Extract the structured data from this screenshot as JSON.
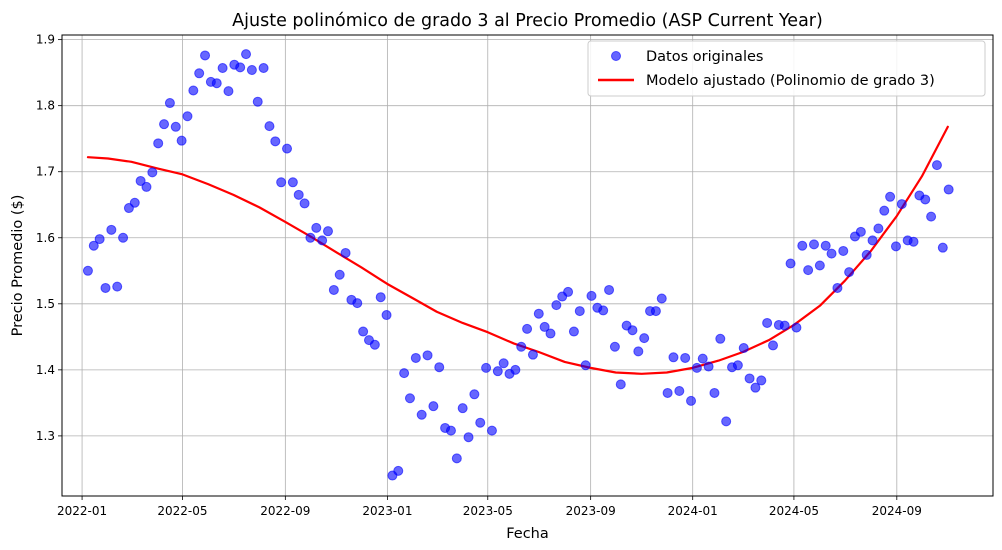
{
  "chart_data": {
    "type": "scatter",
    "title": "Ajuste polinómico de grado 3 al Precio Promedio (ASP Current Year)",
    "xlabel": "Fecha",
    "ylabel": "Precio Promedio ($)",
    "xlim": [
      "2021-12-08",
      "2024-12-25"
    ],
    "ylim": [
      1.209,
      1.907
    ],
    "grid": true,
    "legend_position": "top-right",
    "x_ticks": [
      "2022-01",
      "2022-05",
      "2022-09",
      "2023-01",
      "2023-05",
      "2023-09",
      "2024-01",
      "2024-05",
      "2024-09"
    ],
    "y_ticks": [
      "1.3",
      "1.4",
      "1.5",
      "1.6",
      "1.7",
      "1.8",
      "1.9"
    ],
    "series": [
      {
        "name": "Datos originales",
        "kind": "scatter",
        "color": "#0000ff",
        "points": [
          [
            "2022-01-08",
            1.55
          ],
          [
            "2022-01-15",
            1.588
          ],
          [
            "2022-01-22",
            1.598
          ],
          [
            "2022-01-29",
            1.524
          ],
          [
            "2022-02-05",
            1.612
          ],
          [
            "2022-02-12",
            1.526
          ],
          [
            "2022-02-19",
            1.6
          ],
          [
            "2022-02-26",
            1.645
          ],
          [
            "2022-03-05",
            1.653
          ],
          [
            "2022-03-12",
            1.686
          ],
          [
            "2022-03-19",
            1.677
          ],
          [
            "2022-03-26",
            1.699
          ],
          [
            "2022-04-02",
            1.743
          ],
          [
            "2022-04-09",
            1.772
          ],
          [
            "2022-04-16",
            1.804
          ],
          [
            "2022-04-23",
            1.768
          ],
          [
            "2022-04-30",
            1.747
          ],
          [
            "2022-05-07",
            1.784
          ],
          [
            "2022-05-14",
            1.823
          ],
          [
            "2022-05-21",
            1.849
          ],
          [
            "2022-05-28",
            1.876
          ],
          [
            "2022-06-04",
            1.836
          ],
          [
            "2022-06-11",
            1.834
          ],
          [
            "2022-06-18",
            1.857
          ],
          [
            "2022-06-25",
            1.822
          ],
          [
            "2022-07-02",
            1.862
          ],
          [
            "2022-07-09",
            1.858
          ],
          [
            "2022-07-16",
            1.878
          ],
          [
            "2022-07-23",
            1.854
          ],
          [
            "2022-07-30",
            1.806
          ],
          [
            "2022-08-06",
            1.857
          ],
          [
            "2022-08-13",
            1.769
          ],
          [
            "2022-08-20",
            1.746
          ],
          [
            "2022-08-27",
            1.684
          ],
          [
            "2022-09-03",
            1.735
          ],
          [
            "2022-09-10",
            1.684
          ],
          [
            "2022-09-17",
            1.665
          ],
          [
            "2022-09-24",
            1.652
          ],
          [
            "2022-10-01",
            1.6
          ],
          [
            "2022-10-08",
            1.615
          ],
          [
            "2022-10-15",
            1.596
          ],
          [
            "2022-10-22",
            1.61
          ],
          [
            "2022-10-29",
            1.521
          ],
          [
            "2022-11-05",
            1.544
          ],
          [
            "2022-11-12",
            1.577
          ],
          [
            "2022-11-19",
            1.506
          ],
          [
            "2022-11-26",
            1.501
          ],
          [
            "2022-12-03",
            1.458
          ],
          [
            "2022-12-10",
            1.445
          ],
          [
            "2022-12-17",
            1.438
          ],
          [
            "2022-12-24",
            1.51
          ],
          [
            "2022-12-31",
            1.483
          ],
          [
            "2023-01-07",
            1.24
          ],
          [
            "2023-01-14",
            1.247
          ],
          [
            "2023-01-21",
            1.395
          ],
          [
            "2023-01-28",
            1.357
          ],
          [
            "2023-02-04",
            1.418
          ],
          [
            "2023-02-11",
            1.332
          ],
          [
            "2023-02-18",
            1.422
          ],
          [
            "2023-02-25",
            1.345
          ],
          [
            "2023-03-04",
            1.404
          ],
          [
            "2023-03-11",
            1.312
          ],
          [
            "2023-03-18",
            1.308
          ],
          [
            "2023-03-25",
            1.266
          ],
          [
            "2023-04-01",
            1.342
          ],
          [
            "2023-04-08",
            1.298
          ],
          [
            "2023-04-15",
            1.363
          ],
          [
            "2023-04-22",
            1.32
          ],
          [
            "2023-04-29",
            1.403
          ],
          [
            "2023-05-06",
            1.308
          ],
          [
            "2023-05-13",
            1.398
          ],
          [
            "2023-05-20",
            1.41
          ],
          [
            "2023-05-27",
            1.394
          ],
          [
            "2023-06-03",
            1.4
          ],
          [
            "2023-06-10",
            1.435
          ],
          [
            "2023-06-17",
            1.462
          ],
          [
            "2023-06-24",
            1.423
          ],
          [
            "2023-07-01",
            1.485
          ],
          [
            "2023-07-08",
            1.465
          ],
          [
            "2023-07-15",
            1.455
          ],
          [
            "2023-07-22",
            1.498
          ],
          [
            "2023-07-29",
            1.511
          ],
          [
            "2023-08-05",
            1.518
          ],
          [
            "2023-08-12",
            1.458
          ],
          [
            "2023-08-19",
            1.489
          ],
          [
            "2023-08-26",
            1.407
          ],
          [
            "2023-09-02",
            1.512
          ],
          [
            "2023-09-09",
            1.494
          ],
          [
            "2023-09-16",
            1.49
          ],
          [
            "2023-09-23",
            1.521
          ],
          [
            "2023-09-30",
            1.435
          ],
          [
            "2023-10-07",
            1.378
          ],
          [
            "2023-10-14",
            1.467
          ],
          [
            "2023-10-21",
            1.46
          ],
          [
            "2023-10-28",
            1.428
          ],
          [
            "2023-11-04",
            1.448
          ],
          [
            "2023-11-11",
            1.489
          ],
          [
            "2023-11-18",
            1.489
          ],
          [
            "2023-11-25",
            1.508
          ],
          [
            "2023-12-02",
            1.365
          ],
          [
            "2023-12-09",
            1.419
          ],
          [
            "2023-12-16",
            1.368
          ],
          [
            "2023-12-23",
            1.418
          ],
          [
            "2023-12-30",
            1.353
          ],
          [
            "2024-01-06",
            1.403
          ],
          [
            "2024-01-13",
            1.417
          ],
          [
            "2024-01-20",
            1.405
          ],
          [
            "2024-01-27",
            1.365
          ],
          [
            "2024-02-03",
            1.447
          ],
          [
            "2024-02-10",
            1.322
          ],
          [
            "2024-02-17",
            1.404
          ],
          [
            "2024-02-24",
            1.407
          ],
          [
            "2024-03-02",
            1.433
          ],
          [
            "2024-03-09",
            1.387
          ],
          [
            "2024-03-16",
            1.373
          ],
          [
            "2024-03-23",
            1.384
          ],
          [
            "2024-03-30",
            1.471
          ],
          [
            "2024-04-06",
            1.437
          ],
          [
            "2024-04-13",
            1.468
          ],
          [
            "2024-04-20",
            1.467
          ],
          [
            "2024-04-27",
            1.561
          ],
          [
            "2024-05-04",
            1.464
          ],
          [
            "2024-05-11",
            1.588
          ],
          [
            "2024-05-18",
            1.551
          ],
          [
            "2024-05-25",
            1.59
          ],
          [
            "2024-06-01",
            1.558
          ],
          [
            "2024-06-08",
            1.588
          ],
          [
            "2024-06-15",
            1.576
          ],
          [
            "2024-06-22",
            1.524
          ],
          [
            "2024-06-29",
            1.58
          ],
          [
            "2024-07-06",
            1.548
          ],
          [
            "2024-07-13",
            1.602
          ],
          [
            "2024-07-20",
            1.609
          ],
          [
            "2024-07-27",
            1.574
          ],
          [
            "2024-08-03",
            1.596
          ],
          [
            "2024-08-10",
            1.614
          ],
          [
            "2024-08-17",
            1.641
          ],
          [
            "2024-08-24",
            1.662
          ],
          [
            "2024-08-31",
            1.587
          ],
          [
            "2024-09-07",
            1.651
          ],
          [
            "2024-09-14",
            1.596
          ],
          [
            "2024-09-21",
            1.594
          ],
          [
            "2024-09-28",
            1.664
          ],
          [
            "2024-10-05",
            1.658
          ],
          [
            "2024-10-12",
            1.632
          ],
          [
            "2024-10-19",
            1.71
          ],
          [
            "2024-10-26",
            1.585
          ],
          [
            "2024-11-02",
            1.673
          ]
        ]
      },
      {
        "name": "Modelo ajustado (Polinomio de grado 3)",
        "kind": "line",
        "color": "#ff0000",
        "points": [
          [
            "2022-01-08",
            1.722
          ],
          [
            "2022-02-01",
            1.72
          ],
          [
            "2022-03-01",
            1.715
          ],
          [
            "2022-04-01",
            1.705
          ],
          [
            "2022-05-01",
            1.696
          ],
          [
            "2022-06-01",
            1.681
          ],
          [
            "2022-07-01",
            1.665
          ],
          [
            "2022-08-01",
            1.646
          ],
          [
            "2022-09-01",
            1.624
          ],
          [
            "2022-10-01",
            1.602
          ],
          [
            "2022-11-01",
            1.578
          ],
          [
            "2022-12-01",
            1.555
          ],
          [
            "2023-01-01",
            1.53
          ],
          [
            "2023-02-01",
            1.508
          ],
          [
            "2023-03-01",
            1.488
          ],
          [
            "2023-04-01",
            1.471
          ],
          [
            "2023-05-01",
            1.457
          ],
          [
            "2023-06-01",
            1.44
          ],
          [
            "2023-07-01",
            1.427
          ],
          [
            "2023-08-01",
            1.412
          ],
          [
            "2023-09-01",
            1.403
          ],
          [
            "2023-10-01",
            1.396
          ],
          [
            "2023-11-01",
            1.394
          ],
          [
            "2023-12-01",
            1.396
          ],
          [
            "2024-01-01",
            1.403
          ],
          [
            "2024-02-01",
            1.414
          ],
          [
            "2024-03-01",
            1.427
          ],
          [
            "2024-04-01",
            1.445
          ],
          [
            "2024-05-01",
            1.468
          ],
          [
            "2024-06-01",
            1.497
          ],
          [
            "2024-07-01",
            1.535
          ],
          [
            "2024-08-01",
            1.58
          ],
          [
            "2024-09-01",
            1.633
          ],
          [
            "2024-10-01",
            1.693
          ],
          [
            "2024-11-01",
            1.768
          ]
        ]
      }
    ]
  }
}
